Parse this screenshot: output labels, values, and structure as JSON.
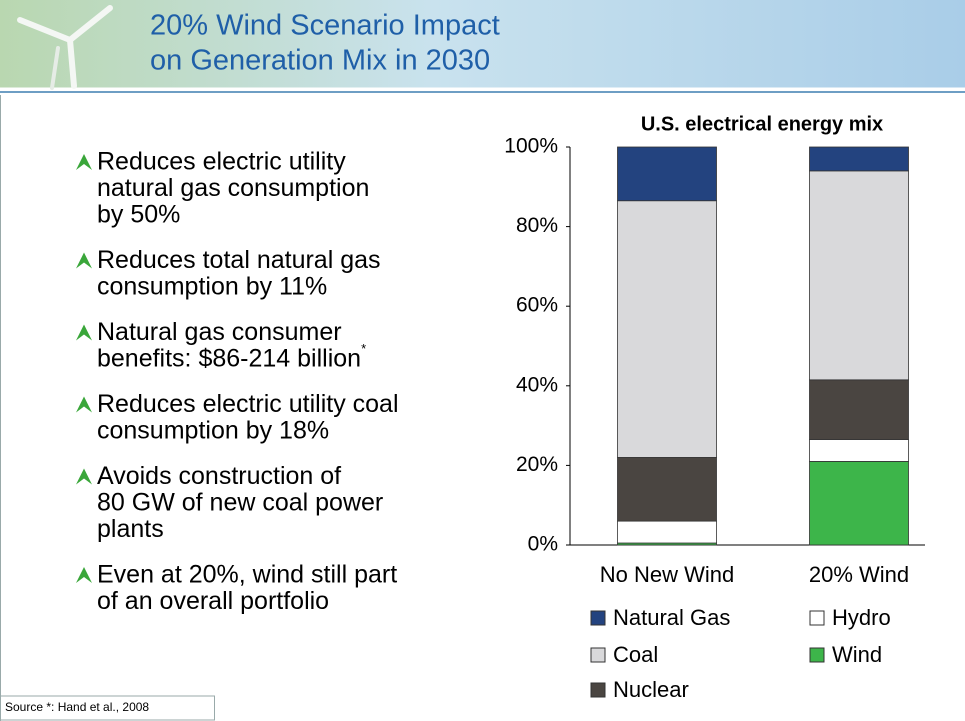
{
  "title": [
    "20% Wind Scenario Impact",
    "on Generation Mix in 2030"
  ],
  "bullets": [
    [
      "Reduces electric utility",
      "natural gas consumption",
      "by 50%"
    ],
    [
      "Reduces total natural gas",
      "consumption by 11%"
    ],
    [
      "Natural gas consumer",
      "benefits: $86-214 billion"
    ],
    [
      "Reduces electric utility coal",
      "consumption by 18%"
    ],
    [
      "Avoids construction of",
      "80 GW of new coal power",
      "plants"
    ],
    [
      "Even at 20%, wind still part",
      "of an overall portfolio"
    ]
  ],
  "footnote_marker": "*",
  "source": "Source *: Hand et al., 2008",
  "chart_data": {
    "type": "stacked_bar",
    "title": "U.S. electrical energy mix",
    "categories": [
      "No New Wind",
      "20% Wind"
    ],
    "series": [
      {
        "name": "Wind",
        "color": "#3db54a",
        "values": [
          0.5,
          21
        ]
      },
      {
        "name": "Hydro",
        "color": "#ffffff",
        "values": [
          5.5,
          5.5
        ]
      },
      {
        "name": "Nuclear",
        "color": "#4a4541",
        "values": [
          16,
          15
        ]
      },
      {
        "name": "Coal",
        "color": "#d9d9db",
        "values": [
          64.5,
          52.5
        ]
      },
      {
        "name": "Natural Gas",
        "color": "#23437f",
        "values": [
          13.5,
          6
        ]
      }
    ],
    "ylim": [
      0,
      100
    ],
    "yticks": [
      {
        "value": 0,
        "label": "0%"
      },
      {
        "value": 20,
        "label": "20%"
      },
      {
        "value": 40,
        "label": "40%"
      },
      {
        "value": 60,
        "label": "60%"
      },
      {
        "value": 80,
        "label": "80%"
      },
      {
        "value": 100,
        "label": "100%"
      }
    ],
    "grid": false
  }
}
